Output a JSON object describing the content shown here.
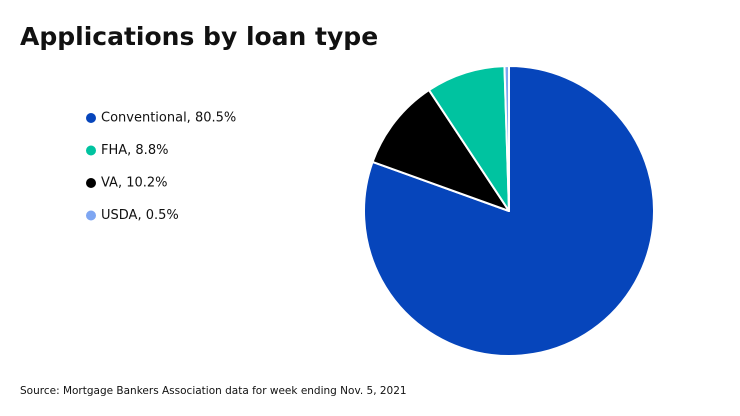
{
  "chart_data": {
    "type": "pie",
    "title": "Applications by loan type",
    "value_labels": [
      "Conventional, 80.5%",
      "VA, 10.2%",
      "FHA, 8.8%",
      "USDA, 0.5%"
    ],
    "values": [
      80.5,
      10.2,
      8.8,
      0.5
    ],
    "colors": [
      "#0645bb",
      "#000000",
      "#00c3a0",
      "#7ea6f2"
    ],
    "source": "Source: Mortgage Bankers Association data for week ending Nov. 5, 2021"
  }
}
